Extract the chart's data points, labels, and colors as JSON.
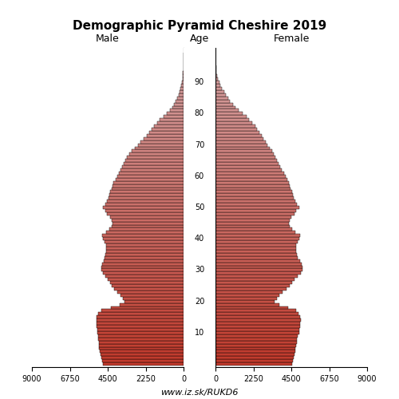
{
  "title": "Demographic Pyramid Cheshire 2019",
  "xlabel_center": "Age",
  "label_male": "Male",
  "label_female": "Female",
  "footer": "www.iz.sk/RUKD6",
  "xlim": 9000,
  "bar_color_young": "#c0392b",
  "bar_color_old": "#d4a0a0",
  "bar_edge_color": "#000000",
  "ages": [
    0,
    1,
    2,
    3,
    4,
    5,
    6,
    7,
    8,
    9,
    10,
    11,
    12,
    13,
    14,
    15,
    16,
    17,
    18,
    19,
    20,
    21,
    22,
    23,
    24,
    25,
    26,
    27,
    28,
    29,
    30,
    31,
    32,
    33,
    34,
    35,
    36,
    37,
    38,
    39,
    40,
    41,
    42,
    43,
    44,
    45,
    46,
    47,
    48,
    49,
    50,
    51,
    52,
    53,
    54,
    55,
    56,
    57,
    58,
    59,
    60,
    61,
    62,
    63,
    64,
    65,
    66,
    67,
    68,
    69,
    70,
    71,
    72,
    73,
    74,
    75,
    76,
    77,
    78,
    79,
    80,
    81,
    82,
    83,
    84,
    85,
    86,
    87,
    88,
    89,
    90,
    91,
    92,
    93,
    94,
    95,
    96,
    97,
    98,
    99
  ],
  "male": [
    4800,
    4850,
    4900,
    4950,
    4980,
    5000,
    5020,
    5020,
    5050,
    5080,
    5100,
    5120,
    5150,
    5150,
    5180,
    5170,
    5050,
    4900,
    4300,
    3800,
    3500,
    3600,
    3750,
    3950,
    4100,
    4250,
    4350,
    4500,
    4650,
    4800,
    4900,
    4900,
    4850,
    4750,
    4700,
    4650,
    4600,
    4600,
    4600,
    4700,
    4800,
    4850,
    4600,
    4400,
    4250,
    4200,
    4250,
    4350,
    4550,
    4650,
    4800,
    4650,
    4550,
    4450,
    4400,
    4350,
    4250,
    4200,
    4150,
    4050,
    3950,
    3850,
    3750,
    3650,
    3550,
    3450,
    3350,
    3200,
    3100,
    2900,
    2700,
    2550,
    2350,
    2200,
    2050,
    1900,
    1750,
    1550,
    1400,
    1200,
    1000,
    800,
    680,
    560,
    460,
    380,
    300,
    235,
    180,
    135,
    95,
    65,
    44,
    30,
    20,
    12,
    7,
    4,
    2,
    1
  ],
  "female": [
    4550,
    4600,
    4650,
    4700,
    4730,
    4760,
    4800,
    4820,
    4850,
    4880,
    4950,
    4980,
    5010,
    5010,
    5050,
    5040,
    4920,
    4800,
    4300,
    3800,
    3500,
    3650,
    3800,
    4000,
    4200,
    4400,
    4550,
    4700,
    4900,
    5050,
    5150,
    5150,
    5100,
    5000,
    4900,
    4820,
    4770,
    4770,
    4780,
    4860,
    4960,
    5000,
    4750,
    4550,
    4400,
    4380,
    4420,
    4520,
    4700,
    4800,
    4950,
    4850,
    4750,
    4650,
    4600,
    4550,
    4450,
    4400,
    4350,
    4250,
    4150,
    4050,
    3950,
    3850,
    3750,
    3650,
    3550,
    3450,
    3350,
    3200,
    3100,
    3000,
    2850,
    2750,
    2600,
    2450,
    2350,
    2200,
    2000,
    1850,
    1600,
    1380,
    1200,
    1020,
    870,
    750,
    630,
    510,
    400,
    305,
    220,
    150,
    100,
    70,
    48,
    28,
    16,
    9,
    4,
    1
  ],
  "age_tick_positions": [
    10,
    20,
    30,
    40,
    50,
    60,
    70,
    80,
    90
  ]
}
